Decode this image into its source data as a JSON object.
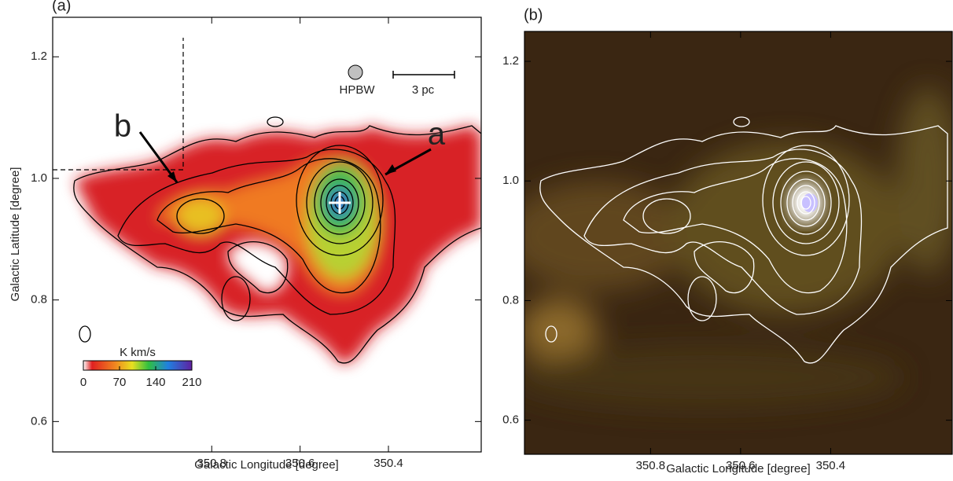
{
  "chart_data": [
    {
      "type": "map",
      "panel_label": "(a)",
      "x_label": "Galactic Longitude [degree]",
      "y_label": "Galactic Latitude [degree]",
      "xlim": [
        351.16,
        350.19
      ],
      "ylim": [
        0.55,
        1.265
      ],
      "xticks": [
        350.8,
        350.6,
        350.4
      ],
      "yticks": [
        0.6,
        0.8,
        {
          "value": 1,
          "label": "1.0"
        },
        1.2
      ],
      "colorbar": {
        "label": "K km/s",
        "lim": [
          0,
          210
        ],
        "ticks": [
          0,
          70,
          140,
          210
        ]
      },
      "annotations": [
        "HPBW",
        "3 pc",
        "a",
        "b"
      ]
    },
    {
      "type": "map",
      "panel_label": "(b)",
      "x_label": "Galactic Longitude [degree]",
      "xlim": [
        351.08,
        350.13
      ],
      "ylim": [
        0.543,
        1.25
      ],
      "xticks": [
        350.8,
        350.6,
        350.4
      ],
      "yticks": [
        0.6,
        0.8,
        {
          "value": 1,
          "label": "1.0"
        },
        1.2
      ]
    }
  ]
}
